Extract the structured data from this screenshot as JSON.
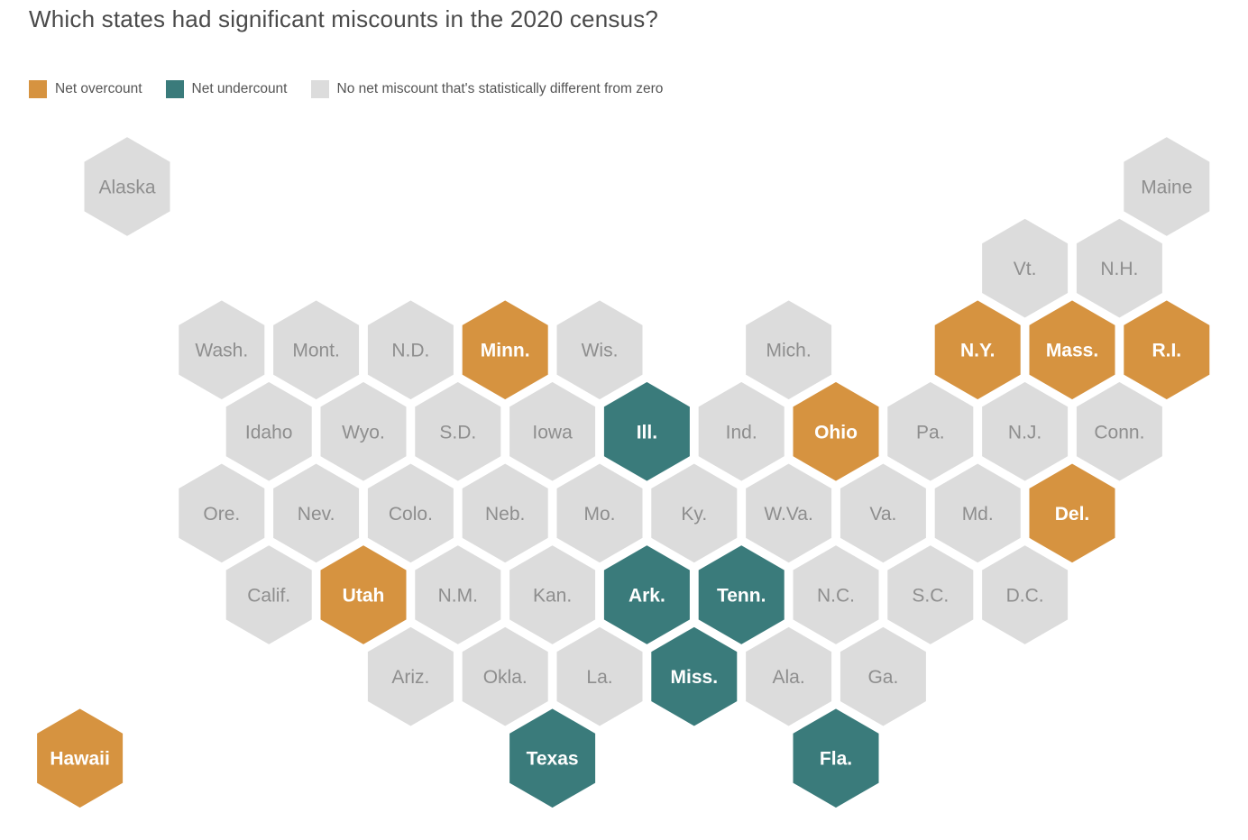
{
  "title": "Which states had significant miscounts in the 2020 census?",
  "legend": [
    {
      "key": "over",
      "label": "Net overcount",
      "color": "#d69340"
    },
    {
      "key": "under",
      "label": "Net undercount",
      "color": "#3a7b7b"
    },
    {
      "key": "none",
      "label": "No net miscount that's statistically different from zero",
      "color": "#dcdcdc"
    }
  ],
  "colors": {
    "over": "#d69340",
    "under": "#3a7b7b",
    "none": "#dcdcdc",
    "label_light": "#ffffff",
    "label_dark": "#8e8e8e"
  },
  "states": [
    {
      "label": "Alaska",
      "row": 0,
      "col": 0,
      "status": "none"
    },
    {
      "label": "Maine",
      "row": 0,
      "col": 11,
      "status": "none"
    },
    {
      "label": "Vt.",
      "row": 1,
      "col": 9.5,
      "status": "none"
    },
    {
      "label": "N.H.",
      "row": 1,
      "col": 10.5,
      "status": "none"
    },
    {
      "label": "Wash.",
      "row": 2,
      "col": 1,
      "status": "none"
    },
    {
      "label": "Mont.",
      "row": 2,
      "col": 2,
      "status": "none"
    },
    {
      "label": "N.D.",
      "row": 2,
      "col": 3,
      "status": "none"
    },
    {
      "label": "Minn.",
      "row": 2,
      "col": 4,
      "status": "over"
    },
    {
      "label": "Wis.",
      "row": 2,
      "col": 5,
      "status": "none"
    },
    {
      "label": "Mich.",
      "row": 2,
      "col": 7,
      "status": "none"
    },
    {
      "label": "N.Y.",
      "row": 2,
      "col": 9,
      "status": "over"
    },
    {
      "label": "Mass.",
      "row": 2,
      "col": 10,
      "status": "over"
    },
    {
      "label": "R.I.",
      "row": 2,
      "col": 11,
      "status": "over"
    },
    {
      "label": "Idaho",
      "row": 3,
      "col": 1.5,
      "status": "none"
    },
    {
      "label": "Wyo.",
      "row": 3,
      "col": 2.5,
      "status": "none"
    },
    {
      "label": "S.D.",
      "row": 3,
      "col": 3.5,
      "status": "none"
    },
    {
      "label": "Iowa",
      "row": 3,
      "col": 4.5,
      "status": "none"
    },
    {
      "label": "Ill.",
      "row": 3,
      "col": 5.5,
      "status": "under"
    },
    {
      "label": "Ind.",
      "row": 3,
      "col": 6.5,
      "status": "none"
    },
    {
      "label": "Ohio",
      "row": 3,
      "col": 7.5,
      "status": "over"
    },
    {
      "label": "Pa.",
      "row": 3,
      "col": 8.5,
      "status": "none"
    },
    {
      "label": "N.J.",
      "row": 3,
      "col": 9.5,
      "status": "none"
    },
    {
      "label": "Conn.",
      "row": 3,
      "col": 10.5,
      "status": "none"
    },
    {
      "label": "Ore.",
      "row": 4,
      "col": 1,
      "status": "none"
    },
    {
      "label": "Nev.",
      "row": 4,
      "col": 2,
      "status": "none"
    },
    {
      "label": "Colo.",
      "row": 4,
      "col": 3,
      "status": "none"
    },
    {
      "label": "Neb.",
      "row": 4,
      "col": 4,
      "status": "none"
    },
    {
      "label": "Mo.",
      "row": 4,
      "col": 5,
      "status": "none"
    },
    {
      "label": "Ky.",
      "row": 4,
      "col": 6,
      "status": "none"
    },
    {
      "label": "W.Va.",
      "row": 4,
      "col": 7,
      "status": "none"
    },
    {
      "label": "Va.",
      "row": 4,
      "col": 8,
      "status": "none"
    },
    {
      "label": "Md.",
      "row": 4,
      "col": 9,
      "status": "none"
    },
    {
      "label": "Del.",
      "row": 4,
      "col": 10,
      "status": "over"
    },
    {
      "label": "Calif.",
      "row": 5,
      "col": 1.5,
      "status": "none"
    },
    {
      "label": "Utah",
      "row": 5,
      "col": 2.5,
      "status": "over"
    },
    {
      "label": "N.M.",
      "row": 5,
      "col": 3.5,
      "status": "none"
    },
    {
      "label": "Kan.",
      "row": 5,
      "col": 4.5,
      "status": "none"
    },
    {
      "label": "Ark.",
      "row": 5,
      "col": 5.5,
      "status": "under"
    },
    {
      "label": "Tenn.",
      "row": 5,
      "col": 6.5,
      "status": "under"
    },
    {
      "label": "N.C.",
      "row": 5,
      "col": 7.5,
      "status": "none"
    },
    {
      "label": "S.C.",
      "row": 5,
      "col": 8.5,
      "status": "none"
    },
    {
      "label": "D.C.",
      "row": 5,
      "col": 9.5,
      "status": "none"
    },
    {
      "label": "Ariz.",
      "row": 6,
      "col": 3,
      "status": "none"
    },
    {
      "label": "Okla.",
      "row": 6,
      "col": 4,
      "status": "none"
    },
    {
      "label": "La.",
      "row": 6,
      "col": 5,
      "status": "none"
    },
    {
      "label": "Miss.",
      "row": 6,
      "col": 6,
      "status": "under"
    },
    {
      "label": "Ala.",
      "row": 6,
      "col": 7,
      "status": "none"
    },
    {
      "label": "Ga.",
      "row": 6,
      "col": 8,
      "status": "none"
    },
    {
      "label": "Hawaii",
      "row": 7,
      "col": -0.5,
      "status": "over"
    },
    {
      "label": "Texas",
      "row": 7,
      "col": 4.5,
      "status": "under"
    },
    {
      "label": "Fla.",
      "row": 7,
      "col": 7.5,
      "status": "under"
    }
  ]
}
